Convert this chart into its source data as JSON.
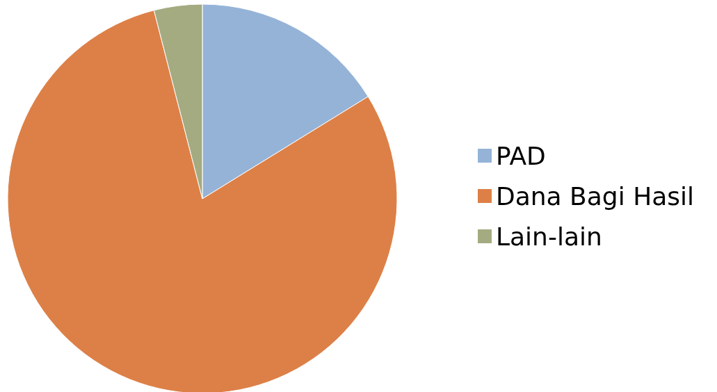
{
  "chart_data": {
    "type": "pie",
    "categories": [
      "PAD",
      "Dana Bagi Hasil",
      "Lain-lain"
    ],
    "values": [
      16.2,
      79.8,
      4.0
    ],
    "colors": [
      "#95b3d7",
      "#dd8047",
      "#a5ab81"
    ],
    "legend": "right"
  }
}
